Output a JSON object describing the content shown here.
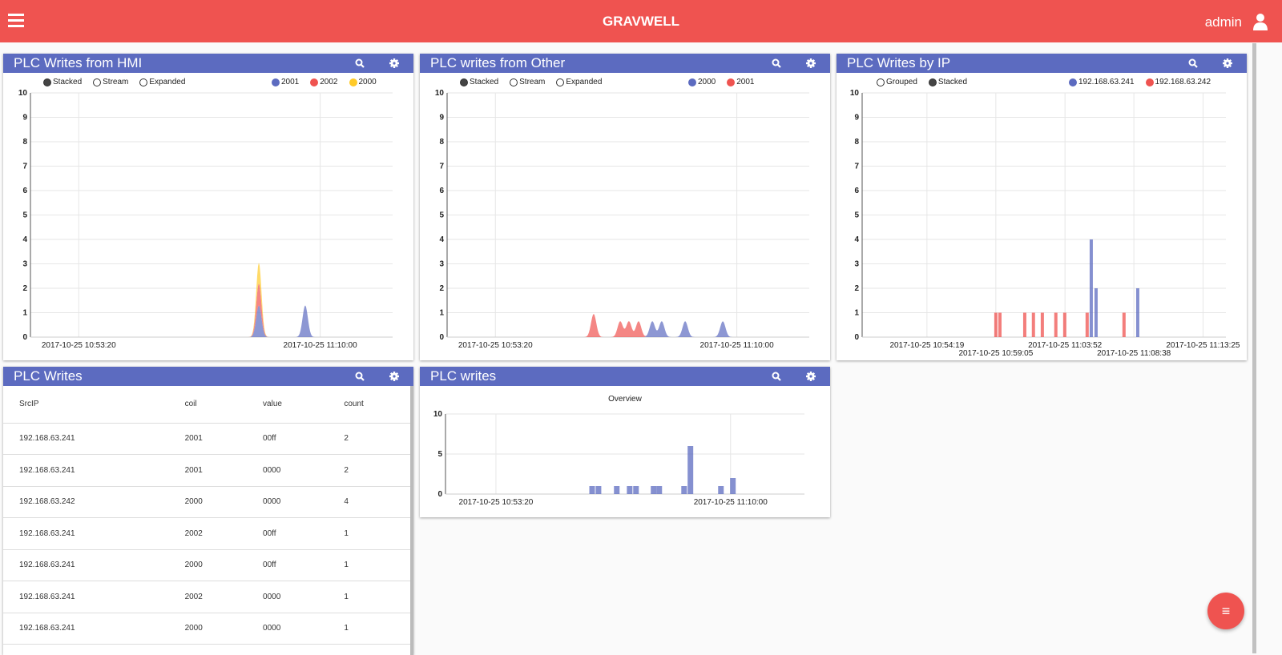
{
  "header": {
    "title": "GRAVWELL",
    "user": "admin"
  },
  "colors": {
    "header": "#ef5350",
    "panel_title": "#5c6bc0",
    "blue": "#5c6bc0",
    "red": "#ef5350",
    "yellow": "#ffca28"
  },
  "panels": [
    {
      "title": "PLC Writes from HMI",
      "modes": [
        "Stacked",
        "Stream",
        "Expanded"
      ],
      "selected_mode": "Stacked",
      "legend": [
        {
          "label": "2001",
          "color": "#5c6bc0"
        },
        {
          "label": "2002",
          "color": "#ef5350"
        },
        {
          "label": "2000",
          "color": "#ffca28"
        }
      ]
    },
    {
      "title": "PLC writes from Other",
      "modes": [
        "Stacked",
        "Stream",
        "Expanded"
      ],
      "selected_mode": "Stacked",
      "legend": [
        {
          "label": "2000",
          "color": "#5c6bc0"
        },
        {
          "label": "2001",
          "color": "#ef5350"
        }
      ]
    },
    {
      "title": "PLC Writes by IP",
      "modes": [
        "Grouped",
        "Stacked"
      ],
      "selected_mode": "Stacked",
      "legend": [
        {
          "label": "192.168.63.241",
          "color": "#5c6bc0"
        },
        {
          "label": "192.168.63.242",
          "color": "#ef5350"
        }
      ]
    },
    {
      "title": "PLC Writes"
    },
    {
      "title": "PLC writes"
    }
  ],
  "table": {
    "columns": [
      "SrcIP",
      "coil",
      "value",
      "count"
    ],
    "rows": [
      [
        "192.168.63.241",
        "2001",
        "00ff",
        "2"
      ],
      [
        "192.168.63.241",
        "2001",
        "0000",
        "2"
      ],
      [
        "192.168.63.242",
        "2000",
        "0000",
        "4"
      ],
      [
        "192.168.63.241",
        "2002",
        "00ff",
        "1"
      ],
      [
        "192.168.63.241",
        "2000",
        "00ff",
        "1"
      ],
      [
        "192.168.63.241",
        "2002",
        "0000",
        "1"
      ],
      [
        "192.168.63.241",
        "2000",
        "0000",
        "1"
      ]
    ]
  },
  "chart_data": [
    {
      "type": "area",
      "stacked": true,
      "xlim": [
        "2017-10-25 10:50:00",
        "2017-10-25 11:15:00"
      ],
      "ylim": [
        0,
        10
      ],
      "yticks": [
        0,
        1,
        2,
        3,
        4,
        5,
        6,
        7,
        8,
        9,
        10
      ],
      "xticks": [
        "2017-10-25 10:53:20",
        "2017-10-25 11:10:00"
      ],
      "grid": true,
      "series": [
        {
          "name": "2001",
          "color": "#5c6bc0",
          "points": [
            [
              "2017-10-25 11:05:46",
              1.3
            ],
            [
              "2017-10-25 11:08:58",
              1.3
            ]
          ]
        },
        {
          "name": "2002",
          "color": "#ef5350",
          "points": [
            [
              "2017-10-25 11:05:46",
              0.9
            ]
          ]
        },
        {
          "name": "2000",
          "color": "#ffca28",
          "points": [
            [
              "2017-10-25 11:05:46",
              0.85
            ]
          ]
        }
      ]
    },
    {
      "type": "area",
      "stacked": true,
      "xlim": [
        "2017-10-25 10:50:00",
        "2017-10-25 11:15:00"
      ],
      "ylim": [
        0,
        10
      ],
      "yticks": [
        0,
        1,
        2,
        3,
        4,
        5,
        6,
        7,
        8,
        9,
        10
      ],
      "xticks": [
        "2017-10-25 10:53:20",
        "2017-10-25 11:10:00"
      ],
      "grid": true,
      "series": [
        {
          "name": "2000",
          "color": "#5c6bc0",
          "points": [
            [
              "2017-10-25 11:04:10",
              0.65
            ],
            [
              "2017-10-25 11:04:49",
              0.65
            ],
            [
              "2017-10-25 11:06:26",
              0.65
            ],
            [
              "2017-10-25 11:09:02",
              0.65
            ]
          ]
        },
        {
          "name": "2001",
          "color": "#ef5350",
          "points": [
            [
              "2017-10-25 11:00:07",
              0.95
            ],
            [
              "2017-10-25 11:01:57",
              0.65
            ],
            [
              "2017-10-25 11:02:33",
              0.65
            ],
            [
              "2017-10-25 11:03:13",
              0.65
            ]
          ]
        }
      ]
    },
    {
      "type": "bar",
      "stacked": true,
      "xlim": [
        "2017-10-25 10:49:50",
        "2017-10-25 11:15:00"
      ],
      "ylim": [
        0,
        10
      ],
      "yticks": [
        0,
        1,
        2,
        3,
        4,
        5,
        6,
        7,
        8,
        9,
        10
      ],
      "xticks": [
        "2017-10-25 10:54:19",
        "2017-10-25 10:59:05",
        "2017-10-25 11:03:52",
        "2017-10-25 11:08:38",
        "2017-10-25 11:13:25"
      ],
      "grid": true,
      "series": [
        {
          "name": "192.168.63.241",
          "color": "#5c6bc0",
          "points": [
            [
              "2017-10-25 11:05:41",
              4
            ],
            [
              "2017-10-25 11:06:01",
              2
            ],
            [
              "2017-10-25 11:08:54",
              2
            ]
          ]
        },
        {
          "name": "192.168.63.242",
          "color": "#ef5350",
          "points": [
            [
              "2017-10-25 10:59:05",
              1
            ],
            [
              "2017-10-25 10:59:22",
              1
            ],
            [
              "2017-10-25 11:01:05",
              1
            ],
            [
              "2017-10-25 11:01:41",
              1
            ],
            [
              "2017-10-25 11:02:18",
              1
            ],
            [
              "2017-10-25 11:03:14",
              1
            ],
            [
              "2017-10-25 11:03:51",
              1
            ],
            [
              "2017-10-25 11:05:24",
              1
            ],
            [
              "2017-10-25 11:07:57",
              1
            ]
          ]
        }
      ]
    },
    {
      "type": "bar",
      "title": "Overview",
      "xlim": [
        "2017-10-25 10:49:45",
        "2017-10-25 11:15:15"
      ],
      "ylim": [
        0,
        10
      ],
      "yticks": [
        0,
        5,
        10
      ],
      "xticks": [
        "2017-10-25 10:53:20",
        "2017-10-25 11:10:00"
      ],
      "grid": true,
      "series": [
        {
          "color": "#5c6bc0",
          "points": [
            [
              "2017-10-25 11:00:10",
              1
            ],
            [
              "2017-10-25 11:00:37",
              1
            ],
            [
              "2017-10-25 11:01:55",
              1
            ],
            [
              "2017-10-25 11:02:50",
              1
            ],
            [
              "2017-10-25 11:03:17",
              1
            ],
            [
              "2017-10-25 11:04:32",
              1
            ],
            [
              "2017-10-25 11:04:56",
              1
            ],
            [
              "2017-10-25 11:06:42",
              1
            ],
            [
              "2017-10-25 11:07:09",
              6
            ],
            [
              "2017-10-25 11:09:19",
              1
            ],
            [
              "2017-10-25 11:10:10",
              2
            ]
          ]
        }
      ]
    }
  ],
  "fab": {
    "icon": "menu-icon",
    "label": "≡"
  }
}
